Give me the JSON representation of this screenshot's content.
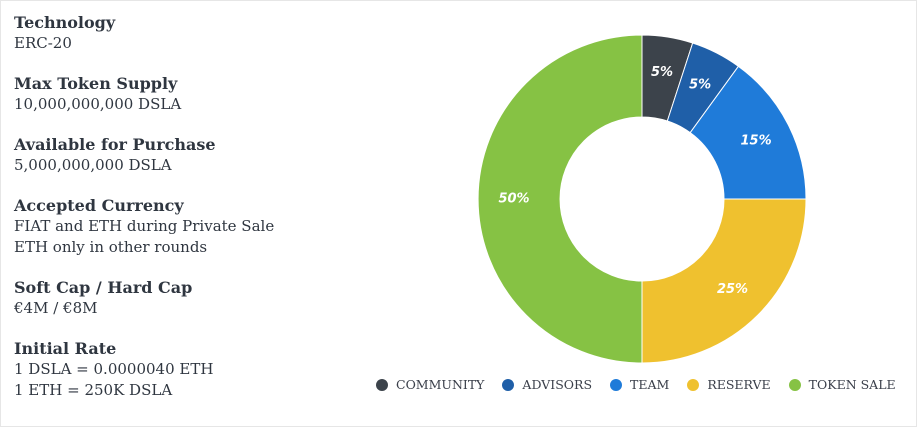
{
  "info": [
    {
      "label": "Technology",
      "lines": [
        "ERC-20"
      ]
    },
    {
      "label": "Max Token Supply",
      "lines": [
        "10,000,000,000 DSLA"
      ]
    },
    {
      "label": "Available for Purchase",
      "lines": [
        "5,000,000,000 DSLA"
      ]
    },
    {
      "label": "Accepted Currency",
      "lines": [
        "FIAT and ETH  during Private Sale",
        "ETH only in other rounds"
      ]
    },
    {
      "label": "Soft Cap / Hard Cap",
      "lines": [
        "€4M / €8M"
      ]
    },
    {
      "label": "Initial Rate",
      "lines": [
        "1 DSLA = 0.0000040 ETH",
        "1 ETH = 250K DSLA"
      ]
    }
  ],
  "chart_data": {
    "type": "pie",
    "donut": true,
    "categories": [
      "COMMUNITY",
      "ADVISORS",
      "TEAM",
      "RESERVE",
      "TOKEN SALE"
    ],
    "values": [
      5,
      5,
      15,
      25,
      50
    ],
    "value_labels": [
      "5%",
      "5%",
      "15%",
      "25%",
      "50%"
    ],
    "colors": [
      "#3c434b",
      "#1f5fa8",
      "#1f7bd9",
      "#efc12f",
      "#86c244"
    ],
    "legend": "bottom"
  }
}
